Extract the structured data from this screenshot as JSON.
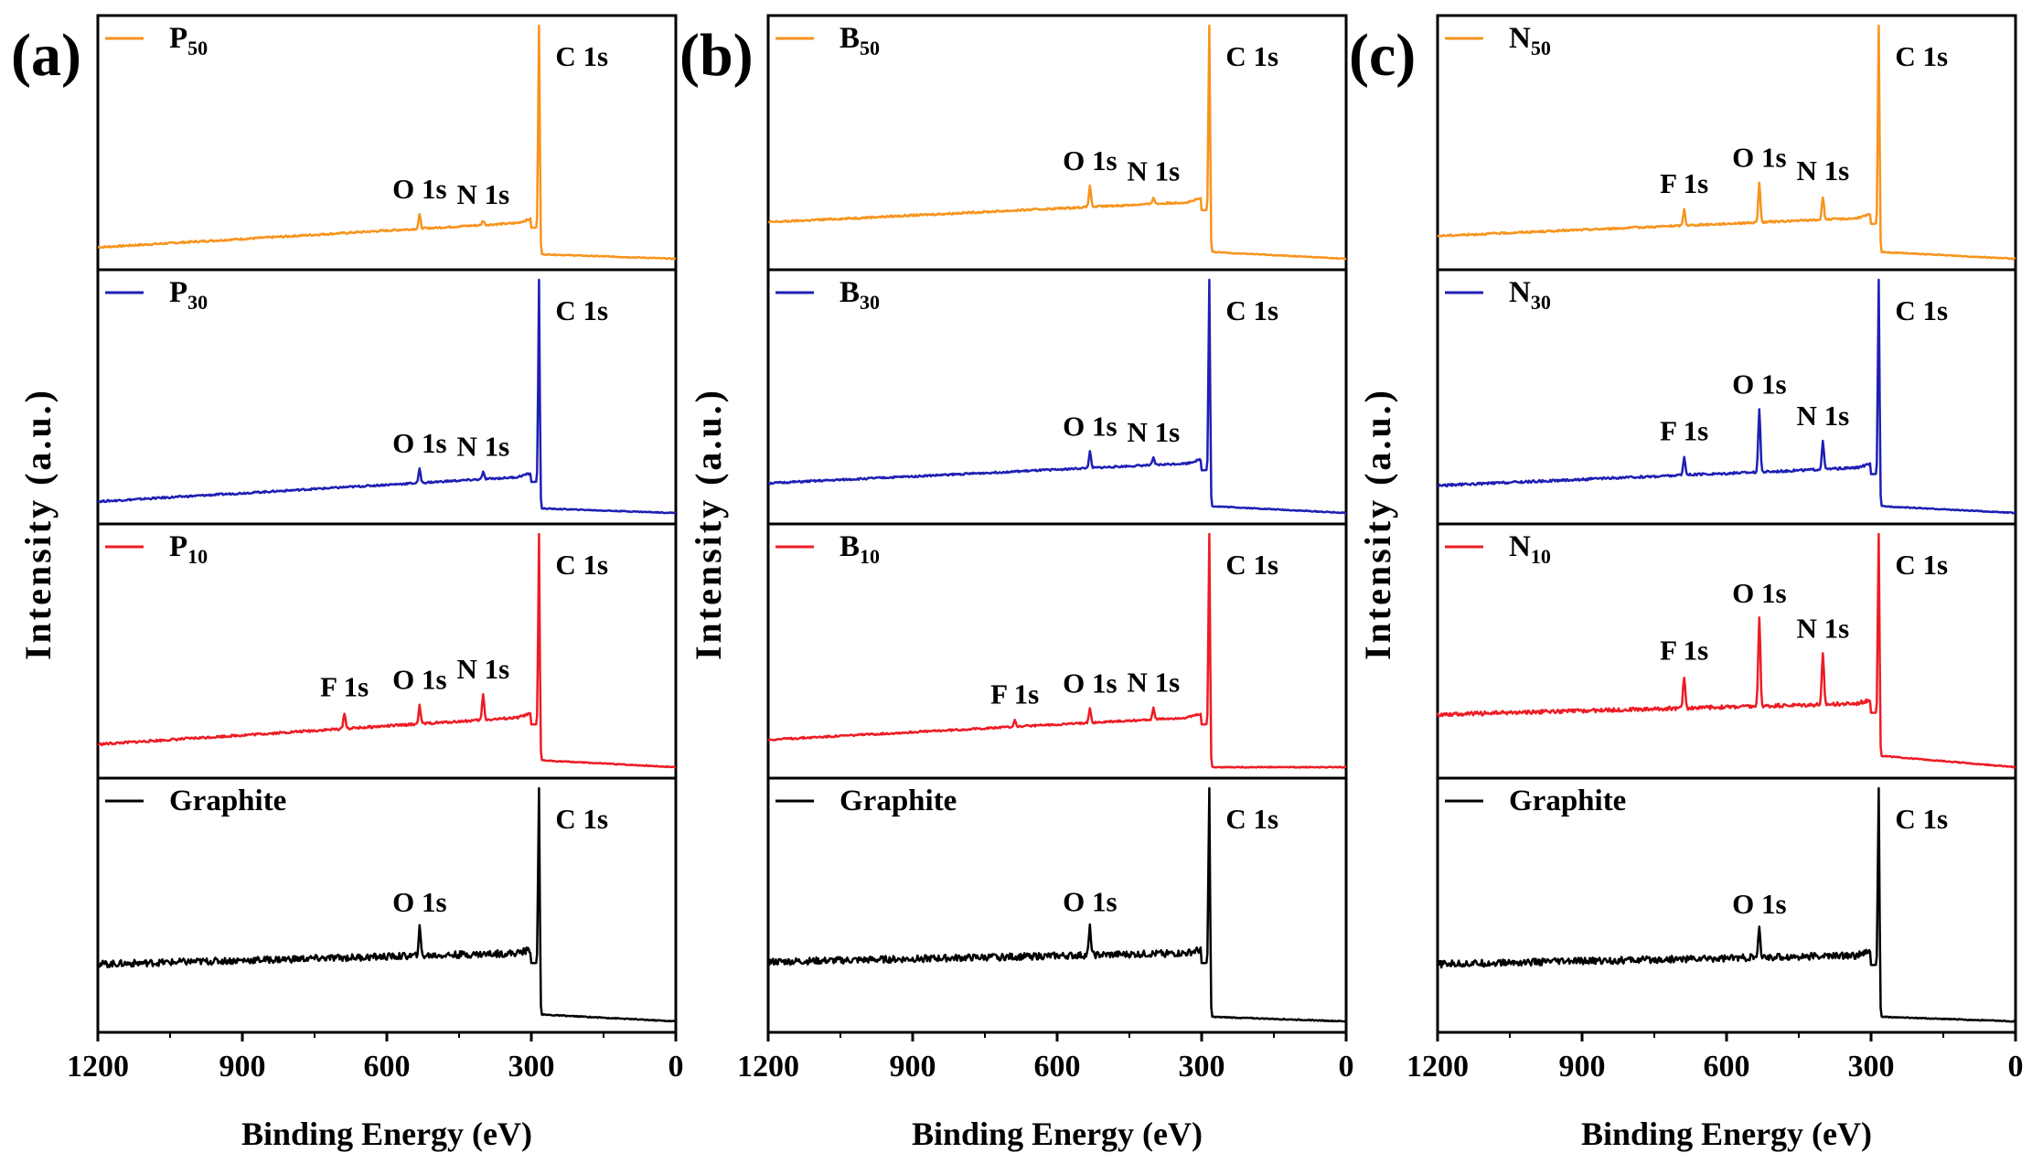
{
  "chart_data": [
    {
      "type": "line",
      "panel_label": "(a)",
      "xlabel": "Binding Energy (eV)",
      "ylabel": "Intensity (a.u.)",
      "xlim": [
        1200,
        0
      ],
      "x_ticks": [
        1200,
        900,
        600,
        300,
        0
      ],
      "x_tick_labels": [
        "1200",
        "900",
        "600",
        "300",
        "0"
      ],
      "series": [
        {
          "name": "P",
          "sub": "50",
          "color": "#f7941d",
          "baseline_left": 0.05,
          "baseline_right": 0.16,
          "bg_tail": 0.02,
          "noise": 0.004,
          "peaks": [
            {
              "label": "C 1s",
              "x": 284,
              "height": 1.0
            },
            {
              "label": "O 1s",
              "x": 532,
              "height": 0.06
            },
            {
              "label": "N 1s",
              "x": 400,
              "height": 0.02
            }
          ]
        },
        {
          "name": "P",
          "sub": "30",
          "color": "#1f1fb4",
          "baseline_left": 0.05,
          "baseline_right": 0.16,
          "bg_tail": 0.02,
          "noise": 0.004,
          "peaks": [
            {
              "label": "C 1s",
              "x": 284,
              "height": 0.92
            },
            {
              "label": "O 1s",
              "x": 532,
              "height": 0.06
            },
            {
              "label": "N 1s",
              "x": 400,
              "height": 0.03
            }
          ]
        },
        {
          "name": "P",
          "sub": "10",
          "color": "#ee1c25",
          "baseline_left": 0.1,
          "baseline_right": 0.22,
          "bg_tail": 0.03,
          "noise": 0.005,
          "peaks": [
            {
              "label": "C 1s",
              "x": 284,
              "height": 0.88
            },
            {
              "label": "F 1s",
              "x": 688,
              "height": 0.07
            },
            {
              "label": "O 1s",
              "x": 532,
              "height": 0.08
            },
            {
              "label": "N 1s",
              "x": 400,
              "height": 0.11
            }
          ]
        },
        {
          "name": "Graphite",
          "sub": "",
          "color": "#000000",
          "baseline_left": 0.25,
          "baseline_right": 0.3,
          "bg_tail": 0.03,
          "noise": 0.015,
          "peaks": [
            {
              "label": "C 1s",
              "x": 284,
              "height": 0.9
            },
            {
              "label": "O 1s",
              "x": 532,
              "height": 0.12
            }
          ]
        }
      ]
    },
    {
      "type": "line",
      "panel_label": "(b)",
      "xlabel": "Binding Energy (eV)",
      "ylabel": "Intensity (a.u.)",
      "xlim": [
        1200,
        0
      ],
      "x_ticks": [
        1200,
        900,
        600,
        300,
        0
      ],
      "x_tick_labels": [
        "1200",
        "900",
        "600",
        "300",
        "0"
      ],
      "series": [
        {
          "name": "B",
          "sub": "50",
          "color": "#f7941d",
          "baseline_left": 0.16,
          "baseline_right": 0.25,
          "bg_tail": 0.03,
          "noise": 0.004,
          "peaks": [
            {
              "label": "C 1s",
              "x": 284,
              "height": 1.0
            },
            {
              "label": "O 1s",
              "x": 532,
              "height": 0.09
            },
            {
              "label": "N 1s",
              "x": 400,
              "height": 0.03
            }
          ]
        },
        {
          "name": "B",
          "sub": "30",
          "color": "#1f1fb4",
          "baseline_left": 0.13,
          "baseline_right": 0.22,
          "bg_tail": 0.03,
          "noise": 0.004,
          "peaks": [
            {
              "label": "C 1s",
              "x": 284,
              "height": 0.98
            },
            {
              "label": "O 1s",
              "x": 532,
              "height": 0.07
            },
            {
              "label": "N 1s",
              "x": 400,
              "height": 0.03
            }
          ]
        },
        {
          "name": "B",
          "sub": "10",
          "color": "#ee1c25",
          "baseline_left": 0.12,
          "baseline_right": 0.22,
          "bg_tail": 0.0,
          "noise": 0.004,
          "peaks": [
            {
              "label": "C 1s",
              "x": 284,
              "height": 0.98
            },
            {
              "label": "F 1s",
              "x": 688,
              "height": 0.03
            },
            {
              "label": "O 1s",
              "x": 532,
              "height": 0.06
            },
            {
              "label": "N 1s",
              "x": 400,
              "height": 0.05
            }
          ]
        },
        {
          "name": "Graphite",
          "sub": "",
          "color": "#000000",
          "baseline_left": 0.26,
          "baseline_right": 0.3,
          "bg_tail": 0.02,
          "noise": 0.015,
          "peaks": [
            {
              "label": "C 1s",
              "x": 284,
              "height": 0.92
            },
            {
              "label": "O 1s",
              "x": 532,
              "height": 0.12
            }
          ]
        }
      ]
    },
    {
      "type": "line",
      "panel_label": "(c)",
      "xlabel": "Binding Energy (eV)",
      "ylabel": "Intensity (a.u.)",
      "xlim": [
        1200,
        0
      ],
      "x_ticks": [
        1200,
        900,
        600,
        300,
        0
      ],
      "x_tick_labels": [
        "1200",
        "900",
        "600",
        "300",
        "0"
      ],
      "series": [
        {
          "name": "N",
          "sub": "50",
          "color": "#f7941d",
          "baseline_left": 0.1,
          "baseline_right": 0.18,
          "bg_tail": 0.03,
          "noise": 0.004,
          "peaks": [
            {
              "label": "C 1s",
              "x": 284,
              "height": 1.0
            },
            {
              "label": "F 1s",
              "x": 688,
              "height": 0.07
            },
            {
              "label": "O 1s",
              "x": 532,
              "height": 0.17
            },
            {
              "label": "N 1s",
              "x": 400,
              "height": 0.1
            }
          ]
        },
        {
          "name": "N",
          "sub": "30",
          "color": "#1f1fb4",
          "baseline_left": 0.12,
          "baseline_right": 0.2,
          "bg_tail": 0.03,
          "noise": 0.005,
          "peaks": [
            {
              "label": "C 1s",
              "x": 284,
              "height": 1.0
            },
            {
              "label": "F 1s",
              "x": 688,
              "height": 0.08
            },
            {
              "label": "O 1s",
              "x": 532,
              "height": 0.27
            },
            {
              "label": "N 1s",
              "x": 400,
              "height": 0.12
            }
          ]
        },
        {
          "name": "N",
          "sub": "10",
          "color": "#ee1c25",
          "baseline_left": 0.23,
          "baseline_right": 0.28,
          "bg_tail": 0.05,
          "noise": 0.008,
          "peaks": [
            {
              "label": "C 1s",
              "x": 284,
              "height": 0.98
            },
            {
              "label": "F 1s",
              "x": 688,
              "height": 0.14
            },
            {
              "label": "O 1s",
              "x": 532,
              "height": 0.38
            },
            {
              "label": "N 1s",
              "x": 400,
              "height": 0.22
            }
          ]
        },
        {
          "name": "Graphite",
          "sub": "",
          "color": "#000000",
          "baseline_left": 0.25,
          "baseline_right": 0.29,
          "bg_tail": 0.02,
          "noise": 0.015,
          "peaks": [
            {
              "label": "C 1s",
              "x": 284,
              "height": 0.92
            },
            {
              "label": "O 1s",
              "x": 532,
              "height": 0.12
            }
          ]
        }
      ]
    }
  ]
}
